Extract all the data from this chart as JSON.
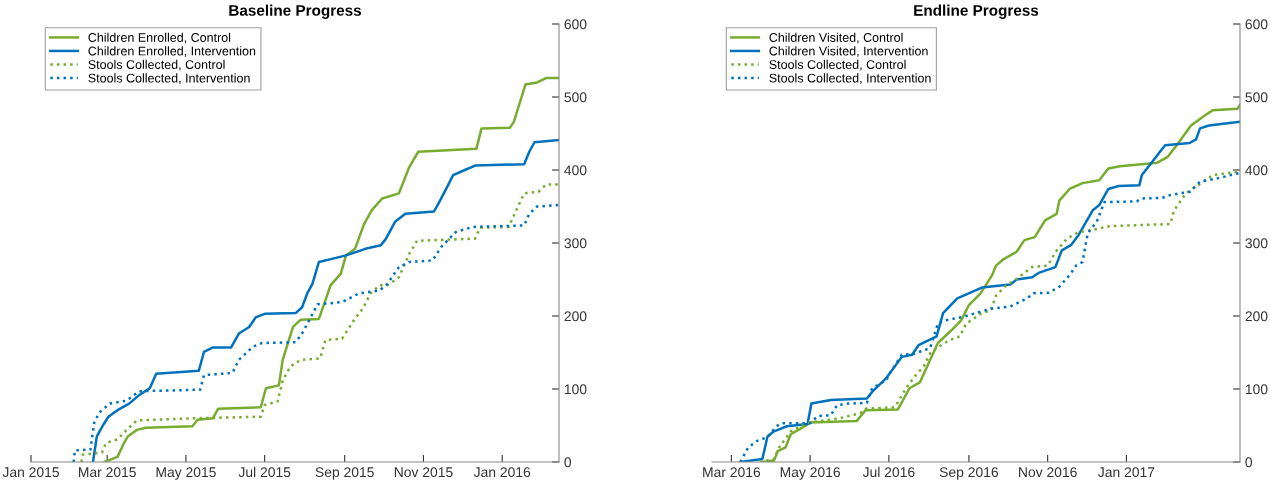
{
  "chart_data": [
    {
      "type": "line",
      "title": "Baseline Progress",
      "xlim": [
        "2015-01-01",
        "2016-02-14"
      ],
      "ylim": [
        0,
        600
      ],
      "yticks": [
        0,
        100,
        200,
        300,
        400,
        500,
        600
      ],
      "xticks": [
        {
          "value": "2015-01-01",
          "label": "Jan 2015"
        },
        {
          "value": "2015-03-01",
          "label": "Mar 2015"
        },
        {
          "value": "2015-05-01",
          "label": "May 2015"
        },
        {
          "value": "2015-07-01",
          "label": "Jul 2015"
        },
        {
          "value": "2015-09-01",
          "label": "Sep 2015"
        },
        {
          "value": "2015-11-01",
          "label": "Nov 2015"
        },
        {
          "value": "2016-01-01",
          "label": "Jan 2016"
        }
      ],
      "grid": false,
      "legend": "top left",
      "series": [
        {
          "name": "Children Enrolled, Control",
          "color": "#77ac30",
          "line_style": "solid",
          "x": [
            "2015-02-27",
            "2015-03-09",
            "2015-03-14",
            "2015-03-17",
            "2015-03-24",
            "2015-03-31",
            "2015-05-06",
            "2015-05-10",
            "2015-05-22",
            "2015-05-26",
            "2015-06-28",
            "2015-07-02",
            "2015-07-12",
            "2015-07-15",
            "2015-07-19",
            "2015-07-23",
            "2015-07-29",
            "2015-08-12",
            "2015-08-17",
            "2015-08-21",
            "2015-08-29",
            "2015-09-02",
            "2015-09-09",
            "2015-09-16",
            "2015-09-22",
            "2015-09-30",
            "2015-10-13",
            "2015-10-21",
            "2015-10-28",
            "2015-12-12",
            "2015-12-16",
            "2016-01-07",
            "2016-01-10",
            "2016-01-16",
            "2016-01-19",
            "2016-01-28",
            "2016-02-04",
            "2016-02-14"
          ],
          "values": [
            0,
            7,
            26,
            35,
            44,
            47,
            49,
            58,
            60,
            73,
            75,
            101,
            105,
            140,
            163,
            185,
            195,
            196,
            221,
            242,
            258,
            283,
            292,
            326,
            345,
            361,
            368,
            404,
            425,
            429,
            457,
            458,
            466,
            500,
            517,
            520,
            526,
            526
          ]
        },
        {
          "name": "Children Enrolled, Intervention",
          "color": "#0072bd",
          "line_style": "solid",
          "x": [
            "2015-02-18",
            "2015-02-21",
            "2015-02-26",
            "2015-03-02",
            "2015-03-09",
            "2015-03-18",
            "2015-03-26",
            "2015-04-03",
            "2015-04-08",
            "2015-05-11",
            "2015-05-15",
            "2015-05-22",
            "2015-06-05",
            "2015-06-11",
            "2015-06-19",
            "2015-06-24",
            "2015-07-01",
            "2015-07-25",
            "2015-07-30",
            "2015-08-03",
            "2015-08-07",
            "2015-08-12",
            "2015-08-26",
            "2015-09-02",
            "2015-09-17",
            "2015-09-29",
            "2015-10-03",
            "2015-10-10",
            "2015-10-18",
            "2015-11-09",
            "2015-11-12",
            "2015-11-18",
            "2015-11-24",
            "2015-12-03",
            "2015-12-11",
            "2016-01-18",
            "2016-01-22",
            "2016-01-26",
            "2016-02-14"
          ],
          "values": [
            0,
            35,
            51,
            62,
            71,
            80,
            92,
            101,
            121,
            125,
            151,
            157,
            157,
            176,
            185,
            198,
            203,
            204,
            212,
            231,
            244,
            274,
            280,
            283,
            292,
            297,
            306,
            329,
            340,
            343,
            352,
            372,
            393,
            400,
            406,
            408,
            425,
            438,
            441
          ]
        },
        {
          "name": "Stools Collected, Control",
          "color": "#77ac30",
          "line_style": "dotted",
          "x": [
            "2015-02-09",
            "2015-02-10",
            "2015-02-25",
            "2015-02-28",
            "2015-03-09",
            "2015-03-16",
            "2015-03-24",
            "2015-05-09",
            "2015-06-28",
            "2015-07-01",
            "2015-07-11",
            "2015-07-15",
            "2015-07-21",
            "2015-07-29",
            "2015-08-13",
            "2015-08-17",
            "2015-08-30",
            "2015-09-08",
            "2015-09-15",
            "2015-09-21",
            "2015-09-28",
            "2015-10-04",
            "2015-10-13",
            "2015-10-21",
            "2015-10-27",
            "2015-12-11",
            "2015-12-15",
            "2016-01-06",
            "2016-01-13",
            "2016-01-18",
            "2016-01-29",
            "2016-02-04",
            "2016-02-14"
          ],
          "values": [
            0,
            10,
            13,
            26,
            31,
            44,
            57,
            60,
            62,
            78,
            83,
            112,
            131,
            140,
            142,
            167,
            169,
            194,
            210,
            231,
            242,
            242,
            253,
            285,
            303,
            306,
            321,
            322,
            349,
            368,
            370,
            380,
            380
          ]
        },
        {
          "name": "Stools Collected, Intervention",
          "color": "#0072bd",
          "line_style": "dotted",
          "x": [
            "2015-02-03",
            "2015-02-04",
            "2015-02-16",
            "2015-02-19",
            "2015-02-23",
            "2015-03-03",
            "2015-03-16",
            "2015-03-26",
            "2015-05-12",
            "2015-05-15",
            "2015-06-06",
            "2015-06-11",
            "2015-06-22",
            "2015-06-29",
            "2015-07-25",
            "2015-07-30",
            "2015-08-11",
            "2015-08-30",
            "2015-09-12",
            "2015-09-28",
            "2015-10-04",
            "2015-10-13",
            "2015-10-21",
            "2015-11-08",
            "2015-11-15",
            "2015-11-26",
            "2015-12-09",
            "2016-01-18",
            "2016-01-22",
            "2016-01-28",
            "2016-02-14"
          ],
          "values": [
            0,
            16,
            17,
            54,
            68,
            80,
            84,
            97,
            99,
            119,
            122,
            140,
            158,
            163,
            164,
            176,
            216,
            219,
            231,
            235,
            244,
            267,
            274,
            276,
            295,
            315,
            322,
            324,
            340,
            350,
            352
          ]
        }
      ]
    },
    {
      "type": "line",
      "title": "Endline Progress",
      "xlim": [
        "2016-02-15",
        "2017-03-30"
      ],
      "ylim": [
        0,
        600
      ],
      "yticks": [
        0,
        100,
        200,
        300,
        400,
        500,
        600
      ],
      "xticks": [
        {
          "value": "2016-03-01",
          "label": "Mar 2016"
        },
        {
          "value": "2016-05-01",
          "label": "May 2016"
        },
        {
          "value": "2016-07-01",
          "label": "Jul 2016"
        },
        {
          "value": "2016-09-01",
          "label": "Sep 2016"
        },
        {
          "value": "2016-11-01",
          "label": "Nov 2016"
        },
        {
          "value": "2017-01-01",
          "label": "Jan 2017"
        }
      ],
      "grid": false,
      "legend": "top left",
      "series": [
        {
          "name": "Children Visited, Control",
          "color": "#77ac30",
          "line_style": "solid",
          "x": [
            "2016-03-25",
            "2016-04-03",
            "2016-04-06",
            "2016-04-12",
            "2016-04-16",
            "2016-04-23",
            "2016-05-01",
            "2016-06-06",
            "2016-06-13",
            "2016-07-08",
            "2016-07-17",
            "2016-07-25",
            "2016-08-02",
            "2016-08-08",
            "2016-08-20",
            "2016-08-26",
            "2016-09-01",
            "2016-09-10",
            "2016-09-19",
            "2016-09-22",
            "2016-09-28",
            "2016-10-08",
            "2016-10-14",
            "2016-10-22",
            "2016-10-30",
            "2016-11-08",
            "2016-11-10",
            "2016-11-18",
            "2016-11-28",
            "2016-12-11",
            "2016-12-18",
            "2016-12-27",
            "2017-01-25",
            "2017-02-02",
            "2017-02-09",
            "2017-02-20",
            "2017-03-03",
            "2017-03-09",
            "2017-03-28",
            "2017-03-30"
          ],
          "values": [
            0,
            2,
            15,
            20,
            38,
            45,
            54,
            56,
            71,
            72,
            101,
            109,
            140,
            163,
            183,
            194,
            215,
            231,
            256,
            269,
            278,
            288,
            304,
            308,
            331,
            340,
            358,
            374,
            382,
            386,
            402,
            405,
            410,
            418,
            434,
            461,
            475,
            482,
            484,
            489
          ]
        },
        {
          "name": "Children Visited, Intervention",
          "color": "#0072bd",
          "line_style": "solid",
          "x": [
            "2016-03-08",
            "2016-03-25",
            "2016-03-29",
            "2016-04-03",
            "2016-04-13",
            "2016-04-29",
            "2016-05-02",
            "2016-05-17",
            "2016-06-14",
            "2016-06-18",
            "2016-06-29",
            "2016-07-11",
            "2016-07-19",
            "2016-07-24",
            "2016-08-07",
            "2016-08-12",
            "2016-08-23",
            "2016-09-11",
            "2016-10-03",
            "2016-10-08",
            "2016-10-20",
            "2016-10-25",
            "2016-11-07",
            "2016-11-12",
            "2016-11-19",
            "2016-11-25",
            "2016-12-06",
            "2016-12-11",
            "2016-12-18",
            "2016-12-26",
            "2017-01-11",
            "2017-01-13",
            "2017-01-20",
            "2017-01-27",
            "2017-01-31",
            "2017-02-19",
            "2017-02-24",
            "2017-02-27",
            "2017-03-06",
            "2017-03-30"
          ],
          "values": [
            0,
            4,
            35,
            42,
            49,
            52,
            80,
            85,
            87,
            96,
            115,
            144,
            147,
            160,
            172,
            204,
            224,
            239,
            243,
            250,
            253,
            259,
            267,
            290,
            297,
            311,
            345,
            352,
            374,
            378,
            379,
            393,
            409,
            425,
            434,
            437,
            442,
            457,
            461,
            466
          ]
        },
        {
          "name": "Stools Collected, Control",
          "color": "#77ac30",
          "line_style": "dotted",
          "x": [
            "2016-03-23",
            "2016-04-03",
            "2016-04-07",
            "2016-04-16",
            "2016-04-26",
            "2016-05-01",
            "2016-05-24",
            "2016-06-09",
            "2016-06-13",
            "2016-07-05",
            "2016-07-08",
            "2016-07-14",
            "2016-07-20",
            "2016-07-28",
            "2016-08-02",
            "2016-08-07",
            "2016-08-17",
            "2016-08-25",
            "2016-08-30",
            "2016-09-03",
            "2016-09-10",
            "2016-09-18",
            "2016-09-22",
            "2016-09-30",
            "2016-10-08",
            "2016-10-20",
            "2016-11-01",
            "2016-11-08",
            "2016-11-16",
            "2016-11-25",
            "2016-12-06",
            "2016-12-19",
            "2017-02-04",
            "2017-02-07",
            "2017-02-16",
            "2017-02-27",
            "2017-03-09",
            "2017-03-30"
          ],
          "values": [
            0,
            4,
            20,
            42,
            51,
            54,
            60,
            67,
            73,
            75,
            82,
            100,
            115,
            131,
            149,
            156,
            167,
            172,
            190,
            194,
            203,
            208,
            228,
            242,
            251,
            267,
            269,
            290,
            306,
            315,
            318,
            323,
            326,
            345,
            368,
            381,
            393,
            398
          ]
        },
        {
          "name": "Stools Collected, Intervention",
          "color": "#0072bd",
          "line_style": "dotted",
          "x": [
            "2016-03-08",
            "2016-03-14",
            "2016-03-21",
            "2016-03-29",
            "2016-04-05",
            "2016-04-09",
            "2016-05-01",
            "2016-05-07",
            "2016-05-17",
            "2016-05-22",
            "2016-05-31",
            "2016-06-14",
            "2016-06-18",
            "2016-06-29",
            "2016-07-02",
            "2016-07-11",
            "2016-07-20",
            "2016-08-02",
            "2016-08-08",
            "2016-08-16",
            "2016-08-28",
            "2016-09-18",
            "2016-10-03",
            "2016-10-16",
            "2016-10-21",
            "2016-11-02",
            "2016-11-10",
            "2016-11-18",
            "2016-11-23",
            "2016-11-28",
            "2016-12-02",
            "2016-12-09",
            "2016-12-15",
            "2017-01-09",
            "2017-01-13",
            "2017-01-29",
            "2017-02-02",
            "2017-02-11",
            "2017-02-19",
            "2017-02-27",
            "2017-03-11",
            "2017-03-30"
          ],
          "values": [
            0,
            20,
            29,
            34,
            49,
            53,
            53,
            63,
            64,
            78,
            80,
            81,
            101,
            112,
            122,
            147,
            148,
            156,
            190,
            195,
            199,
            210,
            213,
            224,
            231,
            232,
            240,
            256,
            269,
            274,
            313,
            329,
            356,
            357,
            361,
            362,
            365,
            368,
            370,
            384,
            388,
            396
          ]
        }
      ]
    }
  ]
}
